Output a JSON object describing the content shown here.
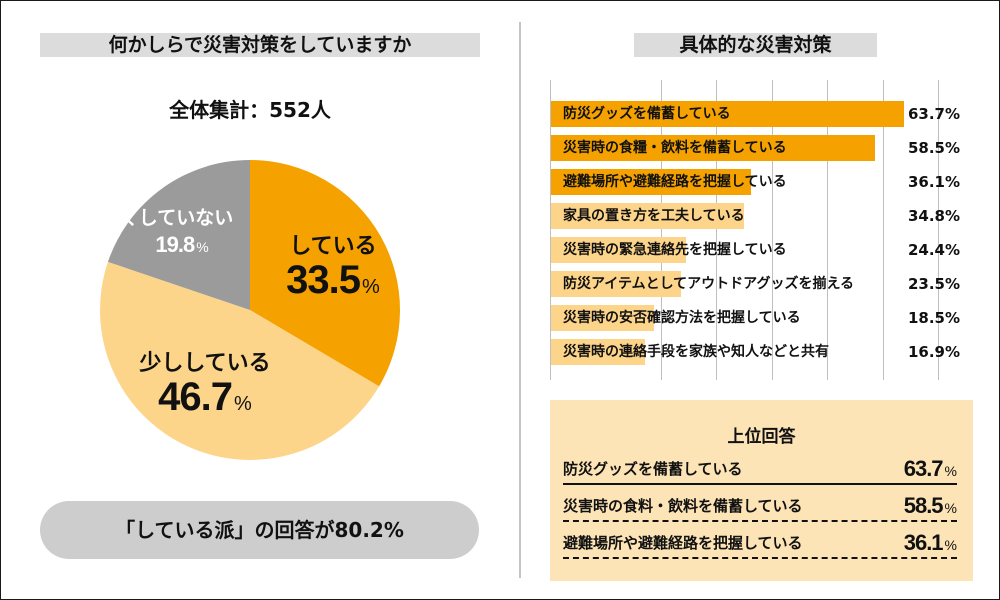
{
  "left_panel": {
    "title": "何かしらで災害対策をしていますか",
    "total": "全体集計：552人",
    "summary": "「している派」の回答が80.2%"
  },
  "right_panel": {
    "title": "具体的な災害対策",
    "top_box": {
      "title": "上位回答",
      "rows": [
        {
          "label": "防災グッズを備蓄している",
          "value": "63.7",
          "unit": "%"
        },
        {
          "label": "災害時の食料・飲料を備蓄している",
          "value": "58.5",
          "unit": "%"
        },
        {
          "label": "避難場所や避難経路を把握している",
          "value": "36.1",
          "unit": "%"
        }
      ]
    }
  },
  "colors": {
    "orange": "#f5a200",
    "light_orange": "#fdd58a",
    "gray": "#9b9b9b",
    "top_box_bg": "#fde4b6"
  },
  "chart_data": [
    {
      "type": "pie",
      "title": "何かしらで災害対策をしていますか",
      "start_angle_deg": 0,
      "direction": "clockwise",
      "slices": [
        {
          "label": "している",
          "value": 33.5,
          "value_text": "33.5",
          "unit": "%",
          "color": "#f5a200",
          "text_color": "#111111"
        },
        {
          "label": "少ししている",
          "value": 46.7,
          "value_text": "46.7",
          "unit": "%",
          "color": "#fdd58a",
          "text_color": "#111111"
        },
        {
          "label": "全くしていない",
          "value": 19.8,
          "value_text": "19.8",
          "unit": "%",
          "color": "#9b9b9b",
          "text_color": "#ffffff"
        }
      ]
    },
    {
      "type": "bar",
      "orientation": "horizontal",
      "title": "具体的な災害対策",
      "xlim": [
        0,
        70
      ],
      "grid": true,
      "gridline_values": [
        20,
        30,
        40,
        50,
        60,
        70
      ],
      "highlight_color": "#f5a200",
      "base_color": "#fdd58a",
      "categories": [
        "防災グッズを備蓄している",
        "災害時の食糧・飲料を備蓄している",
        "避難場所や避難経路を把握している",
        "家具の置き方を工夫している",
        "災害時の緊急連絡先を把握している",
        "防災アイテムとしてアウトドアグッズを揃える",
        "災害時の安否確認方法を把握している",
        "災害時の連絡手段を家族や知人などと共有"
      ],
      "values": [
        63.7,
        58.5,
        36.1,
        34.8,
        24.4,
        23.5,
        18.5,
        16.9
      ],
      "value_labels": [
        "63.7%",
        "58.5%",
        "36.1%",
        "34.8%",
        "24.4%",
        "23.5%",
        "18.5%",
        "16.9%"
      ],
      "highlighted": [
        true,
        true,
        true,
        false,
        false,
        false,
        false,
        false
      ]
    }
  ]
}
